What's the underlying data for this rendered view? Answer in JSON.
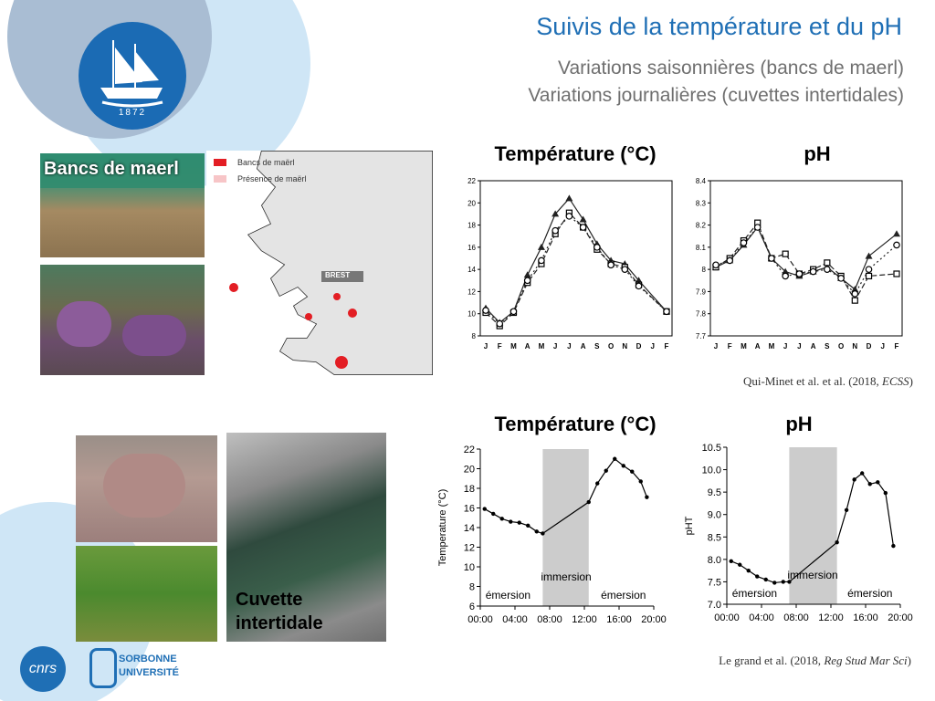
{
  "slide": {
    "title": "Suivis de la température et du pH",
    "subtitle_1": "Variations saisonnières (bancs de maerl)",
    "subtitle_2": "Variations journalières (cuvettes intertidales)",
    "logo_year": "1872",
    "photo_label_maerl": "Bancs de maerl",
    "photo_label_cuvette_1": "Cuvette",
    "photo_label_cuvette_2": "intertidale",
    "map_legend": [
      "Bancs de maërl",
      "Présence de maërl"
    ],
    "map_city": "BREST",
    "cnrs_label": "cnrs",
    "sorbonne_line_1": "SORBONNE",
    "sorbonne_line_2": "UNIVERSITÉ",
    "top_temp_title": "Température (°C)",
    "top_ph_title": "pH",
    "bottom_temp_title": "Température (°C)",
    "bottom_ph_title": "pH",
    "citation_top_a": "Qui-Minet et al. et al. (2018, ",
    "citation_top_journal": "ECSS",
    "citation_top_b": ")",
    "citation_bottom_a": "Le grand et al. (2018, ",
    "citation_bottom_journal": "Reg Stud Mar Sci",
    "citation_bottom_b": ")"
  },
  "colors": {
    "title_blue": "#1f6fb5",
    "shade_grey": "#cccccc",
    "red_marker": "#e31e24",
    "bg_circle": "#cfe6f6"
  },
  "chart_data": [
    {
      "type": "line",
      "title": "Température (°C)",
      "categories": [
        "J",
        "F",
        "M",
        "A",
        "M",
        "J",
        "J",
        "A",
        "S",
        "O",
        "N",
        "D",
        "J",
        "F"
      ],
      "ylim": [
        8,
        22
      ],
      "yticks": [
        8,
        10,
        12,
        14,
        16,
        18,
        20,
        22
      ],
      "series": [
        {
          "values": [
            10.5,
            9.2,
            10.2,
            13.5,
            16.0,
            19.0,
            20.4,
            18.5,
            16.3,
            14.8,
            14.5,
            13.0,
            null,
            10.2
          ]
        },
        {
          "values": [
            10.1,
            8.9,
            10.1,
            12.8,
            14.5,
            17.2,
            19.1,
            17.8,
            15.8,
            14.5,
            14.2,
            12.6,
            null,
            10.2
          ]
        },
        {
          "values": [
            10.3,
            9.1,
            10.2,
            13.0,
            14.8,
            17.5,
            18.8,
            17.8,
            16.0,
            14.4,
            14.0,
            12.5,
            null,
            10.2
          ]
        }
      ]
    },
    {
      "type": "line",
      "title": "pH",
      "categories": [
        "J",
        "F",
        "M",
        "A",
        "M",
        "J",
        "J",
        "A",
        "S",
        "O",
        "N",
        "D",
        "J",
        "F"
      ],
      "ylim": [
        7.7,
        8.4
      ],
      "yticks": [
        "7.7",
        "7.8",
        "7.9",
        "8",
        "8.1",
        "8.2",
        "8.3",
        "8.4"
      ],
      "series": [
        {
          "values": [
            8.01,
            8.04,
            8.11,
            8.19,
            8.05,
            7.99,
            7.97,
            7.99,
            8.01,
            7.96,
            7.91,
            8.06,
            null,
            8.16
          ]
        },
        {
          "values": [
            8.01,
            8.05,
            8.13,
            8.21,
            8.05,
            8.07,
            7.98,
            8.0,
            8.03,
            7.97,
            7.86,
            7.97,
            null,
            7.98
          ]
        },
        {
          "values": [
            8.02,
            8.04,
            8.12,
            8.19,
            8.05,
            7.97,
            7.98,
            7.99,
            8.0,
            7.96,
            7.89,
            8.0,
            null,
            8.11
          ]
        }
      ]
    },
    {
      "type": "line",
      "title": "Température (°C)",
      "ylabel": "Temperature (°C)",
      "xticks": [
        "00:00",
        "04:00",
        "08:00",
        "12:00",
        "16:00",
        "20:00"
      ],
      "xlim": [
        0,
        20
      ],
      "ylim": [
        6,
        22
      ],
      "yticks": [
        6,
        8,
        10,
        12,
        14,
        16,
        18,
        20,
        22
      ],
      "shaded": [
        7.2,
        12.5
      ],
      "annotations": [
        "émersion",
        "immersion",
        "émersion"
      ],
      "series": [
        {
          "x": [
            0.5,
            1.5,
            2.5,
            3.5,
            4.5,
            5.5,
            6.5,
            7.2,
            12.5,
            13.5,
            14.5,
            15.5,
            16.5,
            17.5,
            18.5,
            19.2
          ],
          "values": [
            15.9,
            15.4,
            14.9,
            14.6,
            14.5,
            14.2,
            13.6,
            13.4,
            16.6,
            18.5,
            19.8,
            21.0,
            20.3,
            19.7,
            18.7,
            17.1
          ]
        }
      ]
    },
    {
      "type": "line",
      "title": "pH",
      "ylabel": "pHT",
      "xticks": [
        "00:00",
        "04:00",
        "08:00",
        "12:00",
        "16:00",
        "20:00"
      ],
      "xlim": [
        0,
        20
      ],
      "ylim": [
        7.0,
        10.5
      ],
      "yticks": [
        "7.0",
        "7.5",
        "8.0",
        "8.5",
        "9.0",
        "9.5",
        "10.0",
        "10.5"
      ],
      "shaded": [
        7.2,
        12.7
      ],
      "annotations": [
        "émersion",
        "immersion",
        "émersion"
      ],
      "series": [
        {
          "x": [
            0.5,
            1.5,
            2.5,
            3.5,
            4.5,
            5.5,
            6.5,
            7.2,
            12.7,
            13.8,
            14.7,
            15.6,
            16.5,
            17.4,
            18.3,
            19.2
          ],
          "values": [
            7.96,
            7.88,
            7.75,
            7.62,
            7.55,
            7.48,
            7.5,
            7.5,
            8.38,
            9.1,
            9.78,
            9.92,
            9.68,
            9.72,
            9.48,
            8.3
          ]
        }
      ]
    }
  ]
}
